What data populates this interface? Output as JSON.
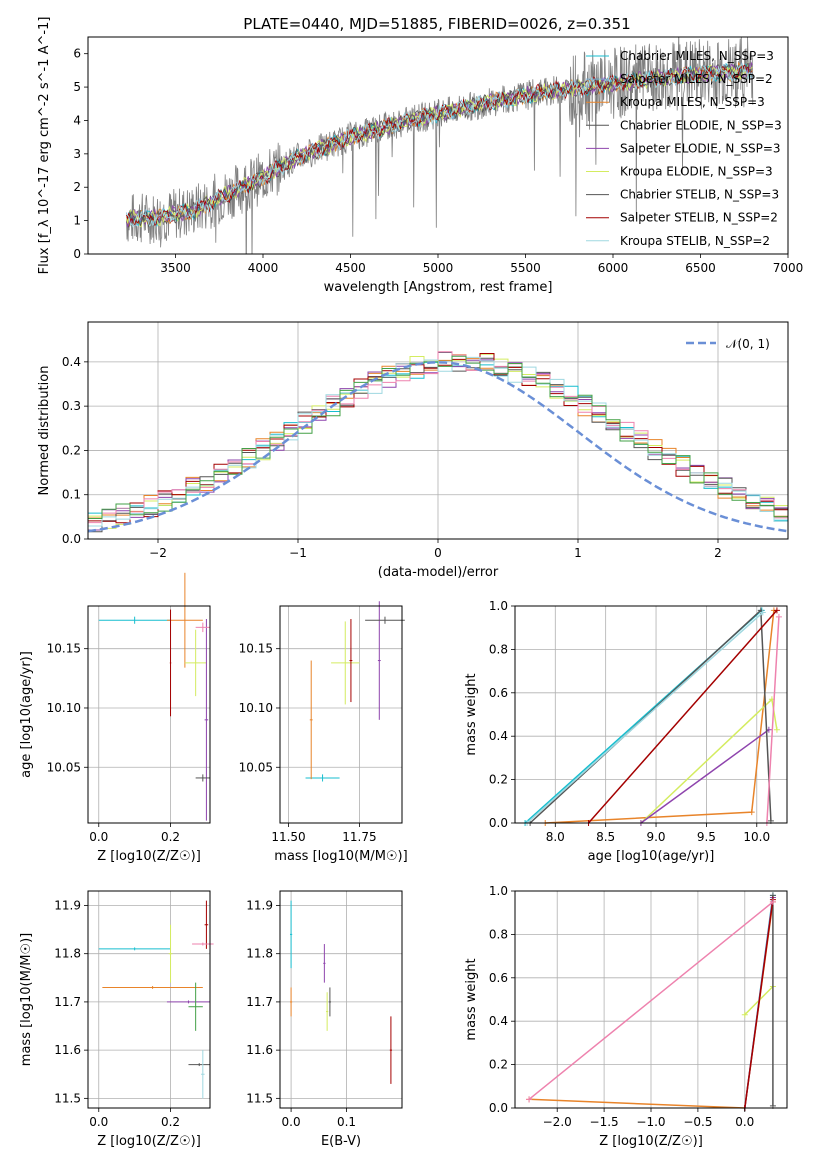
{
  "title": "PLATE=0440, MJD=51885, FIBERID=0026, z=0.351",
  "colors": {
    "data": "#7f7f7f",
    "gauss": "#6a8fd6",
    "models": [
      "#17becf",
      "#7fb3d5",
      "#e8842a",
      "#555555",
      "#8e44ad",
      "#d4ec60",
      "#555555",
      "#a40000",
      "#9fd8e0"
    ],
    "hist": [
      "#17becf",
      "#e8842a",
      "#d4ec60",
      "#8e44ad",
      "#555555",
      "#a40000",
      "#ee82ae",
      "#9fd8e0",
      "#43a047"
    ]
  },
  "chart_data": [
    {
      "id": "spectrum",
      "type": "line",
      "xlabel": "wavelength [Angstrom, rest frame]",
      "ylabel": "Flux [f_λ 10^-17 erg cm^-2 s^-1 A^-1]",
      "xlim": [
        3000,
        7000
      ],
      "ylim": [
        0,
        6.5
      ],
      "xticks": [
        "3500",
        "4000",
        "4500",
        "5000",
        "5500",
        "6000",
        "6500",
        "7000"
      ],
      "yticks": [
        "0",
        "1",
        "2",
        "3",
        "4",
        "5",
        "6"
      ],
      "legend": [
        "Chabrier MILES, N_SSP=3",
        "Salpeter MILES, N_SSP=2",
        "Kroupa MILES, N_SSP=3",
        "Chabrier ELODIE, N_SSP=3",
        "Salpeter ELODIE, N_SSP=3",
        "Kroupa ELODIE, N_SSP=3",
        "Chabrier STELIB, N_SSP=3",
        "Salpeter STELIB, N_SSP=2",
        "Kroupa STELIB, N_SSP=2"
      ],
      "continuum": {
        "x": [
          3220,
          3400,
          3600,
          3800,
          4000,
          4200,
          4500,
          4800,
          5000,
          5300,
          5600,
          6000,
          6400,
          6800
        ],
        "y": [
          1.05,
          1.1,
          1.3,
          1.8,
          2.3,
          2.9,
          3.5,
          3.95,
          4.2,
          4.55,
          4.85,
          5.1,
          5.35,
          5.5
        ]
      }
    },
    {
      "id": "residuals",
      "type": "bar",
      "xlabel": "(data-model)/error",
      "ylabel": "Normed distribution",
      "xlim": [
        -2.5,
        2.5
      ],
      "ylim": [
        0,
        0.49
      ],
      "xticks": [
        "−2",
        "−1",
        "0",
        "1",
        "2"
      ],
      "yticks": [
        "0.0",
        "0.1",
        "0.2",
        "0.3",
        "0.4"
      ],
      "legend": [
        "𝒩(0, 1)"
      ]
    },
    {
      "id": "age-vs-Z",
      "type": "scatter",
      "xlabel": "Z [log10(Z/Z☉)]",
      "ylabel": "age  [log10(age/yr)]",
      "xlim": [
        -0.03,
        0.31
      ],
      "ylim": [
        10.003,
        10.186
      ],
      "xticks": [
        "0.0",
        "0.2"
      ],
      "yticks": [
        "10.05",
        "10.10",
        "10.15"
      ]
    },
    {
      "id": "age-vs-mass",
      "type": "scatter",
      "xlabel": "mass [log10(M/M☉)]",
      "ylabel": "",
      "xlim": [
        11.47,
        11.9
      ],
      "ylim": [
        10.003,
        10.186
      ],
      "xticks": [
        "11.50",
        "11.75"
      ],
      "yticks": [
        "10.05",
        "10.10",
        "10.15"
      ]
    },
    {
      "id": "weight-vs-age",
      "type": "line",
      "xlabel": "age  [log10(age/yr)]",
      "ylabel": "mass weight",
      "xlim": [
        7.6,
        10.3
      ],
      "ylim": [
        0,
        1
      ],
      "xticks": [
        "8.0",
        "8.5",
        "9.0",
        "9.5",
        "10.0"
      ],
      "yticks": [
        "0.0",
        "0.2",
        "0.4",
        "0.6",
        "0.8",
        "1.0"
      ]
    },
    {
      "id": "mass-vs-Z",
      "type": "scatter",
      "xlabel": "Z [log10(Z/Z☉)]",
      "ylabel": "mass [log10(M/M☉)]",
      "xlim": [
        -0.03,
        0.31
      ],
      "ylim": [
        11.48,
        11.93
      ],
      "xticks": [
        "0.0",
        "0.2"
      ],
      "yticks": [
        "11.5",
        "11.6",
        "11.7",
        "11.8",
        "11.9"
      ]
    },
    {
      "id": "mass-vs-ebv",
      "type": "scatter",
      "xlabel": "E(B-V)",
      "ylabel": "",
      "xlim": [
        -0.02,
        0.2
      ],
      "ylim": [
        11.48,
        11.93
      ],
      "xticks": [
        "0.0",
        "0.1"
      ],
      "yticks": [
        "11.5",
        "11.6",
        "11.7",
        "11.8",
        "11.9"
      ]
    },
    {
      "id": "weight-vs-Z",
      "type": "line",
      "xlabel": "Z [log10(Z/Z☉)]",
      "ylabel": "mass weight",
      "xlim": [
        -2.45,
        0.45
      ],
      "ylim": [
        0,
        1
      ],
      "xticks": [
        "−2.0",
        "−1.5",
        "−1.0",
        "−0.5",
        "0.0"
      ],
      "yticks": [
        "0.0",
        "0.2",
        "0.4",
        "0.6",
        "0.8",
        "1.0"
      ]
    }
  ]
}
